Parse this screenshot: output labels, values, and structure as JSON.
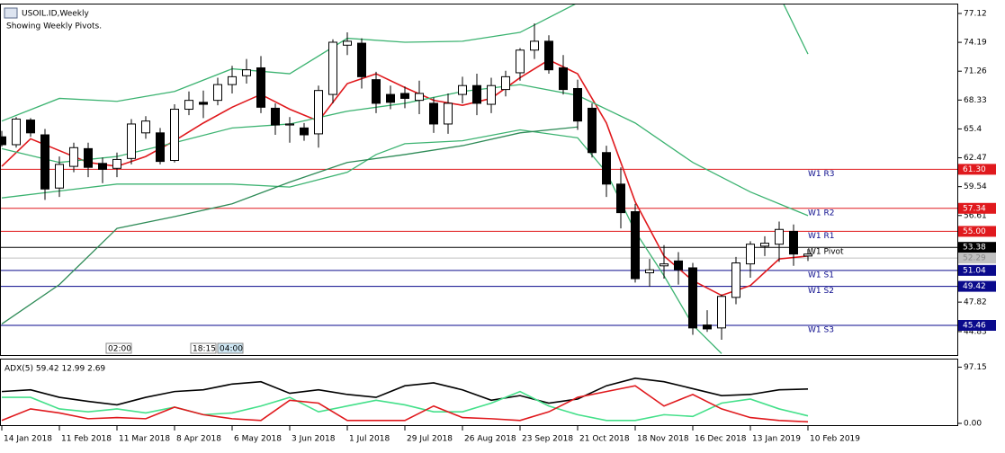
{
  "chart_data": {
    "type": "candlestick",
    "title": "USOIL.ID,Weekly",
    "subtitle": "Showing Weekly Pivots.",
    "categories": [
      "14 Jan 2018",
      null,
      null,
      null,
      "11 Feb 2018",
      null,
      null,
      null,
      "11 Mar 2018",
      null,
      null,
      null,
      "8 Apr 2018",
      null,
      null,
      null,
      "6 May 2018",
      null,
      null,
      null,
      "3 Jun 2018",
      null,
      null,
      null,
      "1 Jul 2018",
      null,
      null,
      null,
      "29 Jul 2018",
      null,
      null,
      null,
      "26 Aug 2018",
      null,
      null,
      null,
      "23 Sep 2018",
      null,
      null,
      null,
      "21 Oct 2018",
      null,
      null,
      null,
      "18 Nov 2018",
      null,
      null,
      null,
      "16 Dec 2018",
      null,
      null,
      null,
      "13 Jan 2019",
      null,
      null,
      null,
      "10 Feb 2019"
    ],
    "open": [
      64.6,
      63.8,
      66.3,
      64.8,
      59.4,
      61.6,
      63.4,
      61.9,
      61.4,
      62.4,
      65.0,
      65.0,
      62.2,
      67.4,
      68.1,
      68.3,
      69.9,
      70.8,
      71.6,
      67.5,
      65.8,
      65.5,
      64.9,
      68.9,
      73.9,
      74.1,
      70.4,
      68.9,
      69.0,
      68.3,
      68.0,
      65.9,
      68.9,
      69.8,
      67.9,
      69.4,
      71.1,
      73.4,
      74.3,
      71.6,
      69.5,
      67.5,
      63.0,
      59.8,
      57.0,
      50.8,
      51.5,
      52.0,
      51.3,
      45.5,
      45.2,
      48.3,
      51.7,
      53.5,
      53.7,
      55.0,
      52.5
    ],
    "close": [
      63.8,
      66.4,
      65.0,
      59.3,
      61.8,
      63.5,
      61.5,
      61.3,
      62.3,
      65.9,
      66.2,
      62.1,
      67.4,
      68.3,
      67.9,
      69.9,
      70.7,
      71.4,
      67.6,
      65.8,
      65.9,
      64.8,
      69.3,
      74.2,
      74.3,
      70.7,
      68.0,
      68.1,
      68.5,
      69.0,
      65.9,
      68.0,
      69.8,
      68.0,
      69.8,
      70.7,
      73.4,
      74.3,
      71.4,
      69.4,
      66.2,
      63.0,
      59.8,
      56.9,
      50.2,
      51.1,
      51.7,
      51.1,
      45.2,
      45.1,
      48.4,
      51.8,
      53.7,
      53.8,
      55.2,
      52.7,
      52.7
    ],
    "high": [
      65.2,
      66.6,
      66.5,
      65.4,
      62.6,
      64.0,
      64.0,
      62.5,
      63.0,
      66.4,
      66.7,
      65.5,
      67.9,
      69.2,
      69.3,
      70.6,
      71.8,
      72.5,
      72.8,
      68.0,
      66.6,
      66.0,
      69.8,
      74.5,
      75.2,
      74.6,
      71.2,
      69.8,
      69.7,
      70.3,
      68.6,
      69.0,
      70.7,
      71.0,
      70.6,
      71.3,
      73.6,
      76.1,
      74.9,
      72.9,
      70.4,
      68.0,
      63.7,
      61.5,
      57.8,
      52.2,
      53.6,
      52.9,
      51.8,
      47.0,
      48.6,
      52.4,
      54.0,
      54.5,
      56.0,
      55.7,
      53.2
    ],
    "low": [
      63.6,
      63.5,
      64.6,
      58.2,
      58.5,
      61.0,
      60.5,
      59.9,
      60.5,
      61.8,
      64.4,
      61.8,
      62.0,
      66.8,
      66.5,
      67.8,
      69.0,
      70.0,
      67.0,
      64.8,
      64.0,
      64.2,
      63.5,
      68.0,
      72.9,
      69.5,
      67.0,
      67.4,
      67.5,
      66.9,
      65.0,
      64.9,
      68.0,
      66.8,
      67.0,
      68.7,
      70.3,
      72.5,
      71.0,
      68.9,
      65.3,
      62.5,
      58.5,
      55.3,
      49.8,
      49.4,
      50.2,
      49.6,
      44.5,
      44.8,
      44.0,
      47.6,
      50.3,
      52.5,
      51.9,
      51.5,
      52.0
    ],
    "overlays": [
      {
        "color": "#e0191d",
        "x": [
          0,
          2,
          4,
          6,
          8,
          10,
          12,
          14,
          16,
          18,
          20,
          22,
          24,
          26,
          28,
          30,
          32,
          34,
          36,
          38,
          40,
          42,
          44,
          46,
          48,
          50,
          52,
          54,
          56
        ],
        "values": [
          61.6,
          64.4,
          63.2,
          62.0,
          61.6,
          62.6,
          64.2,
          66.0,
          67.6,
          68.9,
          67.4,
          66.2,
          70.0,
          71.0,
          69.6,
          68.3,
          67.8,
          68.5,
          70.6,
          72.4,
          71.0,
          66.0,
          58.0,
          52.5,
          50.0,
          48.5,
          49.5,
          52.2,
          52.5
        ]
      },
      {
        "color": "#3cb371",
        "x": [
          0,
          4,
          8,
          12,
          16,
          20,
          24,
          28,
          32,
          36,
          40,
          44,
          54,
          56
        ],
        "values": [
          66.2,
          68.5,
          68.2,
          69.2,
          71.5,
          71.0,
          74.6,
          74.2,
          74.3,
          75.2,
          78.2,
          79.0,
          79.0,
          73.0
        ]
      },
      {
        "color": "#3cb371",
        "x": [
          0,
          4,
          8,
          12,
          16,
          20,
          24,
          28,
          32,
          36,
          40,
          44,
          48,
          52,
          56
        ],
        "values": [
          63.4,
          62.0,
          62.6,
          64.0,
          65.5,
          65.9,
          67.2,
          68.0,
          69.2,
          69.9,
          68.8,
          66.0,
          62.0,
          59.0,
          56.6
        ]
      },
      {
        "color": "#3cb371",
        "x": [
          0,
          4,
          8,
          12,
          16,
          20,
          24,
          26,
          28,
          32,
          36,
          40,
          42,
          44,
          46,
          48,
          50
        ],
        "values": [
          58.4,
          59.1,
          59.8,
          59.8,
          59.8,
          59.5,
          61.0,
          62.8,
          63.9,
          64.2,
          65.3,
          64.5,
          61.0,
          55.0,
          50.5,
          45.5,
          42.6
        ]
      },
      {
        "color": "#2e8b57",
        "x": [
          0,
          4,
          8,
          12,
          16,
          20,
          24,
          28,
          32,
          36,
          40
        ],
        "values": [
          45.6,
          49.6,
          55.3,
          56.5,
          57.8,
          60.0,
          62.0,
          62.8,
          63.7,
          65.0,
          65.6
        ]
      }
    ],
    "levels": [
      {
        "name": "W1 R3",
        "value": 61.3,
        "label": "61.30",
        "color": "#e0191d"
      },
      {
        "name": "W1 R2",
        "value": 57.34,
        "label": "57.34",
        "color": "#e0191d"
      },
      {
        "name": "W1 R1",
        "value": 55.0,
        "label": "55.00",
        "color": "#e0191d"
      },
      {
        "name": "W1 Pivot",
        "value": 53.38,
        "label": "53.38",
        "color": "#000000"
      },
      {
        "value": 52.29,
        "label": "52.29",
        "color": "#c0c0c0"
      },
      {
        "name": "W1 S1",
        "value": 51.04,
        "label": "51.04",
        "color": "#0a0a8c"
      },
      {
        "name": "W1 S2",
        "value": 49.42,
        "label": "49.42",
        "color": "#0a0a8c"
      },
      {
        "name": "W1 S3",
        "value": 45.46,
        "label": "45.46",
        "color": "#0a0a8c"
      }
    ],
    "ylim": [
      42.45,
      78.03
    ],
    "yticks": [
      77.12,
      74.19,
      71.26,
      68.33,
      65.4,
      62.47,
      59.54,
      56.61,
      47.82,
      44.83
    ],
    "time_marks": [
      "02:00",
      "18:15",
      "04:00"
    ],
    "indicator": {
      "title": "ADX(5) 59.42 12.99 2.69",
      "ylim": [
        -3.08,
        110.4
      ],
      "yticks": [
        97.15,
        {
          "value": 0,
          "label": "0.00"
        }
      ],
      "x": [
        0,
        2,
        4,
        6,
        8,
        10,
        12,
        14,
        16,
        18,
        20,
        22,
        24,
        26,
        28,
        30,
        32,
        34,
        36,
        38,
        40,
        42,
        44,
        46,
        48,
        50,
        52,
        54,
        56
      ],
      "series": [
        {
          "color": "#000000",
          "values": [
            55,
            58,
            45,
            38,
            32,
            45,
            55,
            58,
            68,
            72,
            52,
            58,
            50,
            45,
            65,
            70,
            58,
            40,
            48,
            35,
            42,
            65,
            78,
            72,
            60,
            48,
            50,
            58,
            59.42
          ]
        },
        {
          "color": "#44e08a",
          "values": [
            45,
            45,
            25,
            20,
            25,
            18,
            28,
            15,
            18,
            30,
            45,
            20,
            30,
            40,
            32,
            20,
            20,
            35,
            55,
            30,
            15,
            5,
            5,
            15,
            12,
            35,
            42,
            25,
            12.99
          ]
        },
        {
          "color": "#e0191d",
          "values": [
            5,
            25,
            18,
            8,
            10,
            8,
            28,
            15,
            8,
            5,
            40,
            35,
            5,
            5,
            5,
            30,
            10,
            8,
            5,
            20,
            45,
            55,
            65,
            30,
            50,
            25,
            10,
            5,
            2.69
          ]
        }
      ]
    }
  }
}
